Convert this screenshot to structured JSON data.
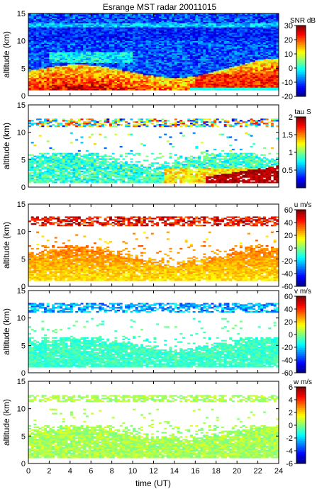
{
  "title": "Esrange MST radar 20011015",
  "chart_data": {
    "type": "heatmap",
    "title": "Esrange MST radar 20011015",
    "xlabel": "time (UT)",
    "x_ticks": [
      "0",
      "2",
      "4",
      "6",
      "8",
      "10",
      "12",
      "14",
      "16",
      "18",
      "20",
      "22",
      "24"
    ],
    "xlim": [
      0,
      24
    ],
    "panels": [
      {
        "id": "snr",
        "ylabel": "altitude (km)",
        "ylim": [
          0,
          15
        ],
        "y_ticks": [
          "0",
          "5",
          "10",
          "15"
        ],
        "colorbar_label": "SNR dB",
        "colorbar_ticks": [
          "30",
          "20",
          "10",
          "0",
          "-10",
          "-20"
        ],
        "range": [
          -20,
          30
        ],
        "regions": [
          {
            "from_hour": 0,
            "to_hour": 24,
            "alt_min_km": 1,
            "alt_max_km": 15,
            "typical_value": -10
          },
          {
            "from_hour": 0,
            "to_hour": 24,
            "alt_min_km": 10,
            "alt_max_km": 12.5,
            "typical_value": -12
          },
          {
            "from_hour": 0,
            "to_hour": 24,
            "alt_min_km": 1.5,
            "alt_max_km": 5.5,
            "typical_value": 15
          },
          {
            "from_hour": 16,
            "to_hour": 24,
            "alt_min_km": 1,
            "alt_max_km": 4,
            "typical_value": 25
          },
          {
            "from_hour": 15.5,
            "to_hour": 24,
            "alt_min_km": 1,
            "alt_max_km": 1.4,
            "typical_value": 0
          }
        ]
      },
      {
        "id": "tau",
        "ylabel": "altitude (km)",
        "ylim": [
          0,
          15
        ],
        "y_ticks": [
          "0",
          "5",
          "10",
          "15"
        ],
        "colorbar_label": "tau S",
        "colorbar_ticks": [
          "2",
          "1.5",
          "1",
          "0.5"
        ],
        "range": [
          0,
          2
        ],
        "regions": [
          {
            "from_hour": 0,
            "to_hour": 24,
            "alt_min_km": 11,
            "alt_max_km": 12.5,
            "typical_value": 1.0
          },
          {
            "from_hour": 0,
            "to_hour": 24,
            "alt_min_km": 1,
            "alt_max_km": 6,
            "typical_value": 0.9
          },
          {
            "from_hour": 17,
            "to_hour": 24,
            "alt_min_km": 1,
            "alt_max_km": 4,
            "typical_value": 1.8
          }
        ]
      },
      {
        "id": "u",
        "ylabel": "altitude (km)",
        "ylim": [
          0,
          15
        ],
        "y_ticks": [
          "0",
          "5",
          "10",
          "15"
        ],
        "colorbar_label": "u m/s",
        "colorbar_ticks": [
          "60",
          "40",
          "20",
          "0",
          "-20",
          "-40",
          "-60"
        ],
        "range": [
          -60,
          60
        ],
        "regions": [
          {
            "from_hour": 0,
            "to_hour": 24,
            "alt_min_km": 11,
            "alt_max_km": 12.5,
            "typical_value": 48
          },
          {
            "from_hour": 0,
            "to_hour": 24,
            "alt_min_km": 1.5,
            "alt_max_km": 7,
            "typical_value": 22
          }
        ]
      },
      {
        "id": "v",
        "ylabel": "altitude (km)",
        "ylim": [
          0,
          15
        ],
        "y_ticks": [
          "0",
          "5",
          "10",
          "15"
        ],
        "colorbar_label": "v m/s",
        "colorbar_ticks": [
          "60",
          "40",
          "20",
          "0",
          "-20",
          "-40",
          "-60"
        ],
        "range": [
          -60,
          60
        ],
        "regions": [
          {
            "from_hour": 0,
            "to_hour": 24,
            "alt_min_km": 11,
            "alt_max_km": 12.5,
            "typical_value": -25
          },
          {
            "from_hour": 0,
            "to_hour": 24,
            "alt_min_km": 1.5,
            "alt_max_km": 6,
            "typical_value": -8
          }
        ]
      },
      {
        "id": "w",
        "ylabel": "altitude (km)",
        "ylim": [
          0,
          15
        ],
        "y_ticks": [
          "0",
          "5",
          "10",
          "15"
        ],
        "colorbar_label": "w m/s",
        "colorbar_ticks": [
          "6",
          "4",
          "2",
          "0",
          "-2",
          "-4",
          "-6"
        ],
        "range": [
          -6,
          6
        ],
        "regions": [
          {
            "from_hour": 0,
            "to_hour": 24,
            "alt_min_km": 11,
            "alt_max_km": 12.5,
            "typical_value": 0.5
          },
          {
            "from_hour": 0,
            "to_hour": 24,
            "alt_min_km": 1.5,
            "alt_max_km": 6.5,
            "typical_value": 0.5
          }
        ]
      }
    ]
  }
}
